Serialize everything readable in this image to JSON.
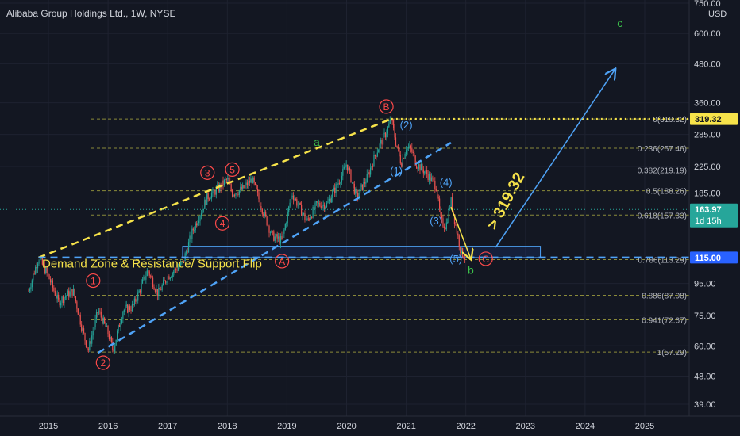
{
  "header": {
    "title": "Alibaba Group Holdings Ltd., 1W, NYSE"
  },
  "price_axis": {
    "currency": "USD"
  },
  "colors": {
    "background": "#131722",
    "up": "#26a69a",
    "down": "#ef5350",
    "yellow_line": "#f7e34a",
    "blue_line": "#4fa3f7",
    "fib_line": "#8a8a3a",
    "wave_red": "#ff4a4a",
    "wave_green": "#3bbf4a",
    "current_price_bg": "#26a69a",
    "resistance_bg": "#f7e34a",
    "support_bg": "#2962ff"
  },
  "chart_data": {
    "type": "candlestick",
    "title": "Alibaba Group Holdings Ltd., 1W, NYSE",
    "y_scale": "log",
    "ylim": [
      35,
      780
    ],
    "y_ticks": [
      {
        "value": 39,
        "label": "39.00"
      },
      {
        "value": 48,
        "label": "48.00"
      },
      {
        "value": 60,
        "label": "60.00"
      },
      {
        "value": 75,
        "label": "75.00"
      },
      {
        "value": 95,
        "label": "95.00"
      },
      {
        "value": 185,
        "label": "185.00"
      },
      {
        "value": 225,
        "label": "225.00"
      },
      {
        "value": 285,
        "label": "285.00"
      },
      {
        "value": 360,
        "label": "360.00"
      },
      {
        "value": 480,
        "label": "480.00"
      },
      {
        "value": 600,
        "label": "600.00"
      },
      {
        "value": 750,
        "label": "750.00"
      }
    ],
    "x_ticks": [
      "2015",
      "2016",
      "2017",
      "2018",
      "2019",
      "2020",
      "2021",
      "2022",
      "2023",
      "2024",
      "2025"
    ],
    "price_path": [
      [
        "2014-09",
        90
      ],
      [
        "2014-11",
        115
      ],
      [
        "2015-01",
        100
      ],
      [
        "2015-03",
        83
      ],
      [
        "2015-05",
        88
      ],
      [
        "2015-06",
        90
      ],
      [
        "2015-08",
        66
      ],
      [
        "2015-09",
        58
      ],
      [
        "2015-11",
        78
      ],
      [
        "2016-01",
        66
      ],
      [
        "2016-02",
        58
      ],
      [
        "2016-04",
        78
      ],
      [
        "2016-06",
        80
      ],
      [
        "2016-09",
        105
      ],
      [
        "2016-11",
        88
      ],
      [
        "2017-01",
        100
      ],
      [
        "2017-04",
        110
      ],
      [
        "2017-06",
        140
      ],
      [
        "2017-09",
        180
      ],
      [
        "2017-11",
        190
      ],
      [
        "2018-01",
        205
      ],
      [
        "2018-02",
        185
      ],
      [
        "2018-04",
        190
      ],
      [
        "2018-06",
        205
      ],
      [
        "2018-08",
        165
      ],
      [
        "2018-10",
        135
      ],
      [
        "2018-12",
        130
      ],
      [
        "2019-02",
        185
      ],
      [
        "2019-05",
        150
      ],
      [
        "2019-07",
        170
      ],
      [
        "2019-09",
        170
      ],
      [
        "2019-12",
        210
      ],
      [
        "2020-01",
        230
      ],
      [
        "2020-03",
        180
      ],
      [
        "2020-05",
        205
      ],
      [
        "2020-07",
        250
      ],
      [
        "2020-09",
        290
      ],
      [
        "2020-10",
        319.32
      ],
      [
        "2020-11",
        265
      ],
      [
        "2020-12",
        230
      ],
      [
        "2021-01",
        260
      ],
      [
        "2021-02",
        255
      ],
      [
        "2021-03",
        230
      ],
      [
        "2021-05",
        215
      ],
      [
        "2021-07",
        195
      ],
      [
        "2021-08",
        150
      ],
      [
        "2021-09",
        145
      ],
      [
        "2021-10",
        175
      ],
      [
        "2021-12",
        120
      ],
      [
        "2022-01",
        115
      ]
    ],
    "current_price": {
      "value": 163.97,
      "label": "163.97",
      "sub": "1d 15h"
    },
    "price_labels": [
      {
        "value": 319.32,
        "label": "319.32"
      },
      {
        "value": 115.0,
        "label": "115.00"
      }
    ],
    "fibonacci": [
      {
        "ratio": 0,
        "price": 319.32,
        "label": "0(319.32)"
      },
      {
        "ratio": 0.236,
        "price": 257.46,
        "label": "0.236(257.46)"
      },
      {
        "ratio": 0.382,
        "price": 219.19,
        "label": "0.382(219.19)"
      },
      {
        "ratio": 0.5,
        "price": 188.26,
        "label": "0.5(188.26)"
      },
      {
        "ratio": 0.618,
        "price": 157.33,
        "label": "0.618(157.33)"
      },
      {
        "ratio": 0.786,
        "price": 113.29,
        "label": "0.786(113.29)"
      },
      {
        "ratio": 0.886,
        "price": 87.08,
        "label": "0.886(87.08)"
      },
      {
        "ratio": 0.941,
        "price": 72.67,
        "label": "0.941(72.67)"
      },
      {
        "ratio": 1,
        "price": 57.29,
        "label": "1(57.29)"
      }
    ],
    "channel_lines": {
      "yellow": [
        [
          "2014-11",
          115
        ],
        [
          "2020-10",
          319.32
        ]
      ],
      "blue": [
        [
          "2015-11",
          57
        ],
        [
          "2021-10",
          268
        ]
      ]
    },
    "support_flip_level": {
      "price": 115,
      "from": "2014-11",
      "to": "2025-12"
    },
    "demand_zone": {
      "from": "2017-04",
      "to": "2023-04",
      "low": 115,
      "high": 125
    },
    "wave_labels": {
      "red_circled": [
        {
          "text": "1",
          "date": "2015-10",
          "price": 97
        },
        {
          "text": "2",
          "date": "2015-12",
          "price": 53
        },
        {
          "text": "3",
          "date": "2017-09",
          "price": 215
        },
        {
          "text": "4",
          "date": "2017-12",
          "price": 148
        },
        {
          "text": "5",
          "date": "2018-02",
          "price": 220
        },
        {
          "text": "A",
          "date": "2018-12",
          "price": 112
        },
        {
          "text": "B",
          "date": "2020-09",
          "price": 350
        },
        {
          "text": "C",
          "date": "2022-05",
          "price": 114
        }
      ],
      "blue": [
        {
          "text": "(1)",
          "date": "2020-11",
          "price": 212
        },
        {
          "text": "(2)",
          "date": "2021-01",
          "price": 298
        },
        {
          "text": "(3)",
          "date": "2021-07",
          "price": 147
        },
        {
          "text": "(4)",
          "date": "2021-09",
          "price": 195
        },
        {
          "text": "(5)",
          "date": "2021-11",
          "price": 111
        }
      ],
      "green": [
        {
          "text": "a",
          "date": "2019-07",
          "price": 262
        },
        {
          "text": "b",
          "date": "2022-02",
          "price": 102
        },
        {
          "text": "c",
          "date": "2024-08",
          "price": 630
        }
      ]
    },
    "annotations": {
      "demand_zone_label": "Demand Zone & Resistance/ Support Flip",
      "target_label": "> 319.32",
      "projection_down": [
        [
          "2021-10",
          167
        ],
        [
          "2022-02",
          114
        ]
      ],
      "projection_up": [
        [
          "2022-07",
          124
        ],
        [
          "2024-07",
          460
        ]
      ]
    }
  }
}
